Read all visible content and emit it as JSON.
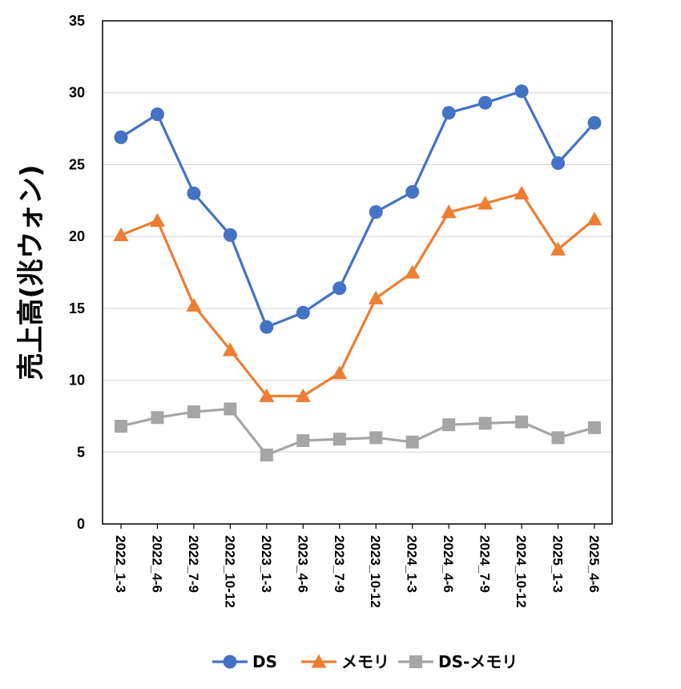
{
  "chart_data": {
    "type": "line",
    "title": "",
    "xlabel": "",
    "ylabel": "売上高(兆ウォン)",
    "ylim": [
      0,
      35
    ],
    "yticks": [
      "0",
      "5",
      "10",
      "15",
      "20",
      "25",
      "30",
      "35"
    ],
    "grid": "horizontal",
    "legend_position": "bottom",
    "categories": [
      "2022_1-3",
      "2022_4-6",
      "2022_7-9",
      "2022_10-12",
      "2023_1-3",
      "2023_4-6",
      "2023_7-9",
      "2023_10-12",
      "2024_1-3",
      "2024_4-6",
      "2024_7-9",
      "2024_10-12",
      "2025_1-3",
      "2025_4-6"
    ],
    "series": [
      {
        "name": "DS",
        "color": "#4472c4",
        "marker": "circle",
        "values": [
          26.9,
          28.5,
          23.0,
          20.1,
          13.7,
          14.7,
          16.4,
          21.7,
          23.1,
          28.6,
          29.3,
          30.1,
          25.1,
          27.9
        ]
      },
      {
        "name": "メモリ",
        "color": "#ed7d31",
        "marker": "triangle",
        "values": [
          20.1,
          21.1,
          15.2,
          12.1,
          8.9,
          8.9,
          10.5,
          15.7,
          17.5,
          21.7,
          22.3,
          23.0,
          19.1,
          21.2
        ]
      },
      {
        "name": "DS-メモリ",
        "color": "#a5a5a5",
        "marker": "square",
        "values": [
          6.8,
          7.4,
          7.8,
          8.0,
          4.8,
          5.8,
          5.9,
          6.0,
          5.7,
          6.9,
          7.0,
          7.1,
          6.0,
          6.7
        ]
      }
    ]
  }
}
